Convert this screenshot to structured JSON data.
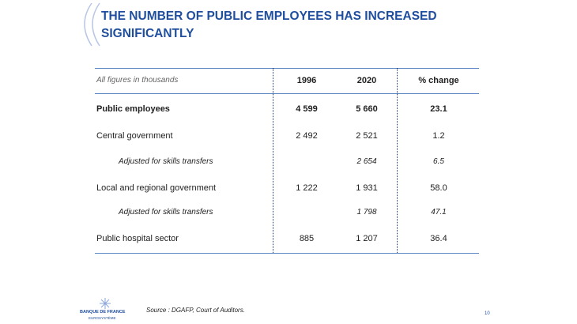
{
  "header": {
    "title": "THE NUMBER OF PUBLIC EMPLOYEES HAS INCREASED SIGNIFICANTLY"
  },
  "table": {
    "columns": [
      "All figures in thousands",
      "1996",
      "2020",
      "% change"
    ],
    "rows": [
      [
        "Public employees",
        "4 599",
        "5 660",
        "23.1"
      ],
      [
        "Central government",
        "2 492",
        "2 521",
        "1.2"
      ],
      [
        "Adjusted for skills transfers",
        null,
        "2 654",
        "6.5"
      ],
      [
        "Local and regional government",
        "1 222",
        "1 931",
        "58.0"
      ],
      [
        "Adjusted for skills transfers",
        null,
        "1 798",
        "47.1"
      ],
      [
        "Public hospital sector",
        "885",
        "1 207",
        "36.4"
      ]
    ]
  },
  "footer": {
    "logo": {
      "name": "BANQUE DE FRANCE",
      "sub": "EUROSYSTÈME"
    },
    "source": "Source : DGAFP, Court of Auditors.",
    "page": "10"
  }
}
